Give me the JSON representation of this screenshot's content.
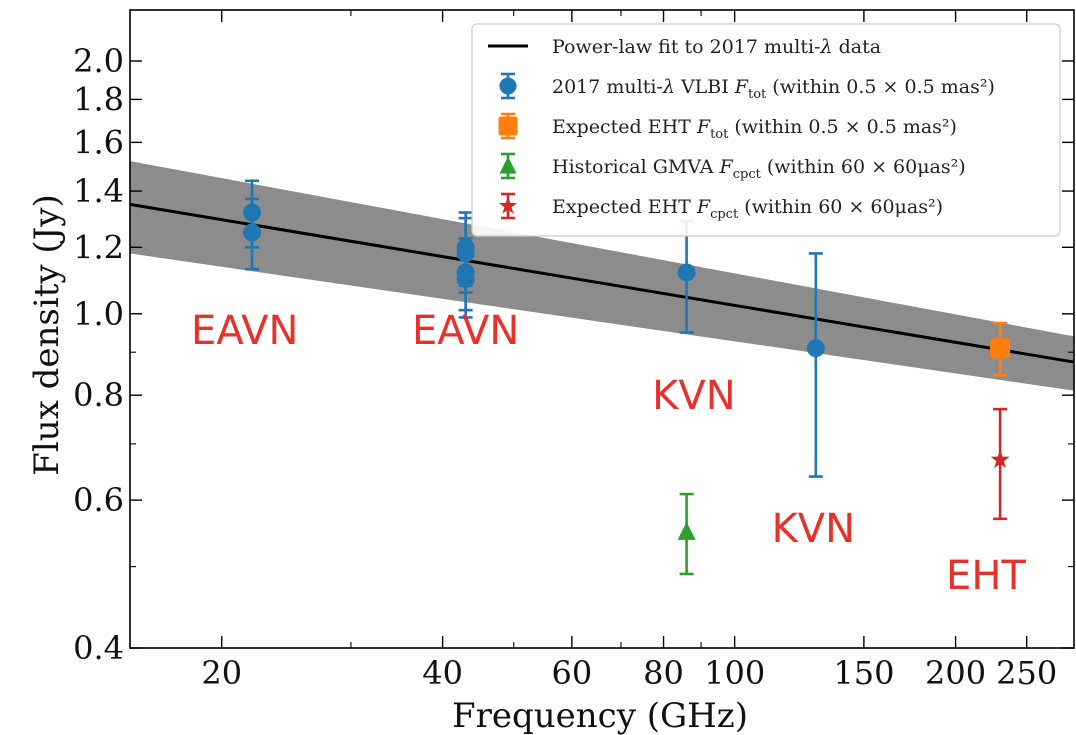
{
  "chart_data": {
    "type": "scatter",
    "xlabel": "Frequency (GHz)",
    "ylabel": "Flux density (Jy)",
    "xscale": "log",
    "yscale": "log",
    "xlim": [
      15,
      290
    ],
    "ylim": [
      0.4,
      2.3
    ],
    "xticks": [
      {
        "value": 20,
        "label": "20"
      },
      {
        "value": 40,
        "label": "40"
      },
      {
        "value": 60,
        "label": "60"
      },
      {
        "value": 80,
        "label": "80"
      },
      {
        "value": 100,
        "label": "100"
      },
      {
        "value": 150,
        "label": "150"
      },
      {
        "value": 200,
        "label": "200"
      },
      {
        "value": 250,
        "label": "250"
      }
    ],
    "yticks": [
      {
        "value": 0.4,
        "label": "0.4"
      },
      {
        "value": 0.6,
        "label": "0.6"
      },
      {
        "value": 0.8,
        "label": "0.8"
      },
      {
        "value": 1.0,
        "label": "1.0"
      },
      {
        "value": 1.2,
        "label": "1.2"
      },
      {
        "value": 1.4,
        "label": "1.4"
      },
      {
        "value": 1.6,
        "label": "1.6"
      },
      {
        "value": 1.8,
        "label": "1.8"
      },
      {
        "value": 2.0,
        "label": "2.0"
      }
    ],
    "legend_position": "top-right",
    "fit": {
      "name": "Power-law fit to 2017 multi-λ data",
      "color": "#000000",
      "band_color": "#8c8c8c",
      "line": [
        [
          15,
          1.35
        ],
        [
          290,
          0.876
        ]
      ],
      "band_upper": [
        [
          15,
          1.52
        ],
        [
          290,
          0.94
        ]
      ],
      "band_lower": [
        [
          15,
          1.18
        ],
        [
          290,
          0.81
        ]
      ]
    },
    "series": [
      {
        "name": "2017 multi-λ VLBI Ftot (within 0.5 × 0.5 mas²)",
        "marker": "circle",
        "color": "#1f77b4",
        "points": [
          {
            "x": 22,
            "y": 1.32,
            "err": 0.12
          },
          {
            "x": 22,
            "y": 1.25,
            "err": 0.12
          },
          {
            "x": 43,
            "y": 1.2,
            "err": 0.12
          },
          {
            "x": 43,
            "y": 1.18,
            "err": 0.12
          },
          {
            "x": 43,
            "y": 1.12,
            "err": 0.11
          },
          {
            "x": 43,
            "y": 1.1,
            "err": 0.11
          },
          {
            "x": 86,
            "y": 1.12,
            "err": 0.17
          },
          {
            "x": 129,
            "y": 0.91,
            "err": 0.27
          }
        ]
      },
      {
        "name": "Expected EHT Ftot (within 0.5 × 0.5 mas²)",
        "marker": "square",
        "color": "#ff7f0e",
        "points": [
          {
            "x": 230,
            "y": 0.91,
            "err": 0.065
          }
        ]
      },
      {
        "name": "Historical GMVA Fcpct (within 60 × 60μas²)",
        "marker": "triangle",
        "color": "#2ca02c",
        "points": [
          {
            "x": 86,
            "y": 0.55,
            "err": 0.06
          }
        ]
      },
      {
        "name": "Expected EHT Fcpct (within 60 × 60μas²)",
        "marker": "star",
        "color": "#d62728",
        "points": [
          {
            "x": 230,
            "y": 0.67,
            "err": 0.1
          }
        ]
      }
    ],
    "legend_entries": [
      {
        "kind": "line",
        "color": "#000000",
        "prefix": "Power-law fit to 2017 multi-",
        "sym": "λ",
        "mid": " data",
        "sub": "",
        "tail": ""
      },
      {
        "kind": "circle",
        "color": "#1f77b4",
        "prefix": "2017 multi-",
        "sym": "λ",
        "mid": " VLBI ",
        "sub": "tot",
        "tail": " (within 0.5 × 0.5 mas²)"
      },
      {
        "kind": "square",
        "color": "#ff7f0e",
        "prefix": "Expected EHT ",
        "sym": "",
        "mid": "",
        "sub": "tot",
        "tail": " (within 0.5 × 0.5 mas²)"
      },
      {
        "kind": "triangle",
        "color": "#2ca02c",
        "prefix": "Historical GMVA ",
        "sym": "",
        "mid": "",
        "sub": "cpct",
        "tail": " (within 60 × 60μas²)"
      },
      {
        "kind": "star",
        "color": "#d62728",
        "prefix": "Expected EHT ",
        "sym": "",
        "mid": "",
        "sub": "cpct",
        "tail": " (within 60 × 60μas²)"
      }
    ],
    "annotations": [
      {
        "text": "EAVN",
        "x": 21.5,
        "y": 0.92,
        "color": "#e8312a"
      },
      {
        "text": "EAVN",
        "x": 43,
        "y": 0.92,
        "color": "#e8312a"
      },
      {
        "text": "KVN",
        "x": 88,
        "y": 0.77,
        "color": "#e8312a"
      },
      {
        "text": "KVN",
        "x": 128,
        "y": 0.535,
        "color": "#e8312a"
      },
      {
        "text": "EHT",
        "x": 220,
        "y": 0.47,
        "color": "#e8312a"
      }
    ]
  }
}
